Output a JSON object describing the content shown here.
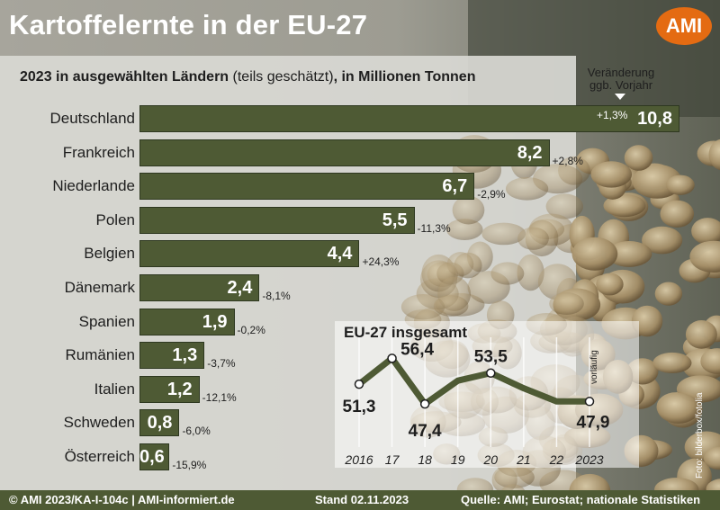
{
  "title": "Kartoffelernte in der EU-27",
  "logo_text": "AMI",
  "subtitle": {
    "bold_part": "2023 in ausgewählten Ländern",
    "normal_part": " (teils geschätzt)",
    "bold_part2": ", in Millionen Tonnen"
  },
  "change_label": {
    "line1": "Veränderung",
    "line2": "ggb. Vorjahr"
  },
  "colors": {
    "bar": "#4e5a34",
    "footer": "#4e5a34",
    "logo": "#e46b12",
    "line": "#4e5a34"
  },
  "chart_data": [
    {
      "type": "bar",
      "orientation": "horizontal",
      "title": "2023 in ausgewählten Ländern (teils geschätzt), in Millionen Tonnen",
      "categories": [
        "Deutschland",
        "Frankreich",
        "Niederlande",
        "Polen",
        "Belgien",
        "Dänemark",
        "Spanien",
        "Rumänien",
        "Italien",
        "Schweden",
        "Österreich"
      ],
      "values": [
        10.8,
        8.2,
        6.7,
        5.5,
        4.4,
        2.4,
        1.9,
        1.3,
        1.2,
        0.8,
        0.6
      ],
      "value_labels": [
        "10,8",
        "8,2",
        "6,7",
        "5,5",
        "4,4",
        "2,4",
        "1,9",
        "1,3",
        "1,2",
        "0,8",
        "0,6"
      ],
      "changes": [
        "+1,3%",
        "+2,8%",
        "-2,9%",
        "-11,3%",
        "+24,3%",
        "-8,1%",
        "-0,2%",
        "-3,7%",
        "-12,1%",
        "-6,0%",
        "-15,9%"
      ],
      "xlim": [
        0,
        10.8
      ]
    },
    {
      "type": "line",
      "title": "EU-27 insgesamt",
      "x": [
        "2016",
        "17",
        "18",
        "19",
        "20",
        "21",
        "22",
        "2023"
      ],
      "y": [
        51.3,
        56.4,
        47.4,
        null,
        53.5,
        null,
        null,
        47.9
      ],
      "point_labels": [
        "51,3",
        "56,4",
        "47,4",
        "",
        "53,5",
        "",
        "",
        "47,9"
      ],
      "y_approx": [
        51.3,
        56.4,
        47.4,
        52.0,
        53.5,
        50.5,
        47.9,
        47.9
      ],
      "annotation": "vorläufig",
      "ylim": [
        45,
        58
      ]
    }
  ],
  "footer": {
    "copyright": "© AMI 2023/KA-I-104c | AMI-informiert.de",
    "stand": "Stand 02.11.2023",
    "source": "Quelle: AMI; Eurostat; nationale Statistiken"
  },
  "photo_credit": "Foto: bilderbox/fotolia"
}
